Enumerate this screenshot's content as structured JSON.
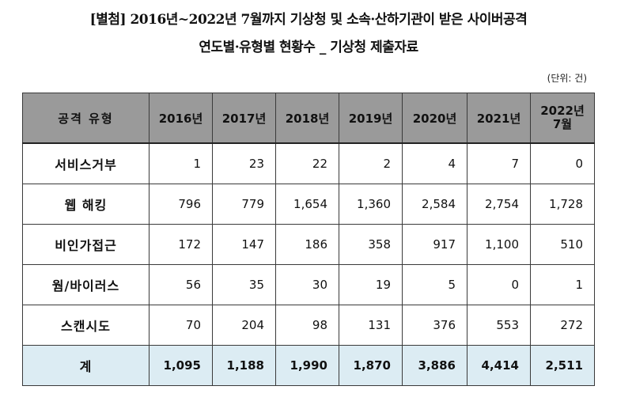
{
  "title_line1": "[별첨] 2016년~2022년 7월까지 기상청 및 소속·산하기관이 받은 사이버공격",
  "title_line2": "연도별·유형별 현황수 _ 기상청 제출자료",
  "unit": "(단위: 건)",
  "table": {
    "header": [
      "공격 유형",
      "2016년",
      "2017년",
      "2018년",
      "2019년",
      "2020년",
      "2021년",
      "2022년\n7월"
    ],
    "rows": [
      {
        "label": "서비스거부",
        "values": [
          "1",
          "23",
          "22",
          "2",
          "4",
          "7",
          "0"
        ]
      },
      {
        "label": "웹 해킹",
        "values": [
          "796",
          "779",
          "1,654",
          "1,360",
          "2,584",
          "2,754",
          "1,728"
        ]
      },
      {
        "label": "비인가접근",
        "values": [
          "172",
          "147",
          "186",
          "358",
          "917",
          "1,100",
          "510"
        ]
      },
      {
        "label": "웜/바이러스",
        "values": [
          "56",
          "35",
          "30",
          "19",
          "5",
          "0",
          "1"
        ]
      },
      {
        "label": "스캔시도",
        "values": [
          "70",
          "204",
          "98",
          "131",
          "376",
          "553",
          "272"
        ]
      }
    ],
    "total": {
      "label": "계",
      "values": [
        "1,095",
        "1,188",
        "1,990",
        "1,870",
        "3,886",
        "4,414",
        "2,511"
      ]
    }
  },
  "colors": {
    "header_bg": "#9a9a9a",
    "total_bg": "#dcecf3",
    "border": "#3a3a3a"
  }
}
